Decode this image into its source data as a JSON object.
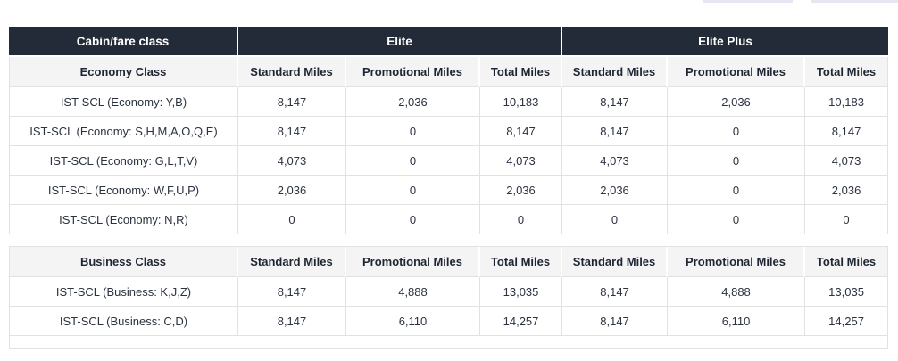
{
  "page": {
    "top_edge_fragments": {
      "color": "#e6e6f0",
      "count": 2
    }
  },
  "table": {
    "colors": {
      "group_header_bg": "#232a38",
      "group_header_text": "#ffffff",
      "subheader_bg": "#f4f4f4",
      "border": "#e2e2e2",
      "body_text": "#2b3240"
    },
    "group_header": {
      "cabin": "Cabin/fare class",
      "elite": "Elite",
      "elite_plus": "Elite Plus"
    },
    "miles_headers": [
      "Standard Miles",
      "Promotional Miles",
      "Total Miles"
    ],
    "sections": [
      {
        "class_label": "Economy Class",
        "rows": [
          {
            "label": "IST-SCL (Economy: Y,B)",
            "values": [
              "8,147",
              "2,036",
              "10,183",
              "8,147",
              "2,036",
              "10,183"
            ]
          },
          {
            "label": "IST-SCL (Economy: S,H,M,A,O,Q,E)",
            "values": [
              "8,147",
              "0",
              "8,147",
              "8,147",
              "0",
              "8,147"
            ]
          },
          {
            "label": "IST-SCL (Economy: G,L,T,V)",
            "values": [
              "4,073",
              "0",
              "4,073",
              "4,073",
              "0",
              "4,073"
            ]
          },
          {
            "label": "IST-SCL (Economy: W,F,U,P)",
            "values": [
              "2,036",
              "0",
              "2,036",
              "2,036",
              "0",
              "2,036"
            ]
          },
          {
            "label": "IST-SCL (Economy: N,R)",
            "values": [
              "0",
              "0",
              "0",
              "0",
              "0",
              "0"
            ]
          }
        ]
      },
      {
        "class_label": "Business Class",
        "rows": [
          {
            "label": "IST-SCL (Business: K,J,Z)",
            "values": [
              "8,147",
              "4,888",
              "13,035",
              "8,147",
              "4,888",
              "13,035"
            ]
          },
          {
            "label": "IST-SCL (Business: C,D)",
            "values": [
              "8,147",
              "6,110",
              "14,257",
              "8,147",
              "6,110",
              "14,257"
            ]
          }
        ]
      }
    ]
  }
}
